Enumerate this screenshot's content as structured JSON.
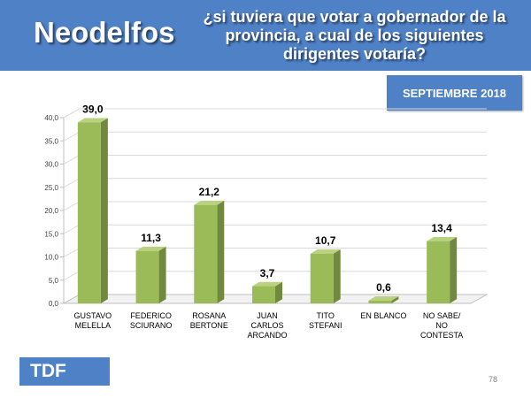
{
  "header": {
    "brand": "Neodelfos",
    "question_lines": [
      "¿si tuviera que votar a gobernador de la",
      "provincia, a cual de los siguientes",
      "dirigentes votaría?"
    ]
  },
  "date_label": "SEPTIEMBRE 2018",
  "footer": {
    "tdf": "TDF",
    "page": "78"
  },
  "colors": {
    "header_blue": "#4f81c7",
    "bar_front": "#9bbb59",
    "bar_side": "#71893f",
    "bar_top": "#b9d27f"
  },
  "chart_data": {
    "type": "bar",
    "categories": [
      [
        "GUSTAVO",
        "MELELLA"
      ],
      [
        "FEDERICO",
        "SCIURANO"
      ],
      [
        "ROSANA",
        "BERTONE"
      ],
      [
        "JUAN",
        "CARLOS",
        "ARCANDO"
      ],
      [
        "TITO",
        "STEFANI"
      ],
      [
        "EN BLANCO"
      ],
      [
        "NO SABE/",
        "NO",
        "CONTESTA"
      ]
    ],
    "values": [
      39.0,
      11.3,
      21.2,
      3.7,
      10.7,
      0.6,
      13.4
    ],
    "value_labels": [
      "39,0",
      "11,3",
      "21,2",
      "3,7",
      "10,7",
      "0,6",
      "13,4"
    ],
    "yticks": [
      "0,0",
      "5,0",
      "10,0",
      "15,0",
      "20,0",
      "25,0",
      "30,0",
      "35,0",
      "40,0"
    ],
    "ylim": [
      0,
      40
    ],
    "grid": true,
    "title": "",
    "xlabel": "",
    "ylabel": ""
  }
}
